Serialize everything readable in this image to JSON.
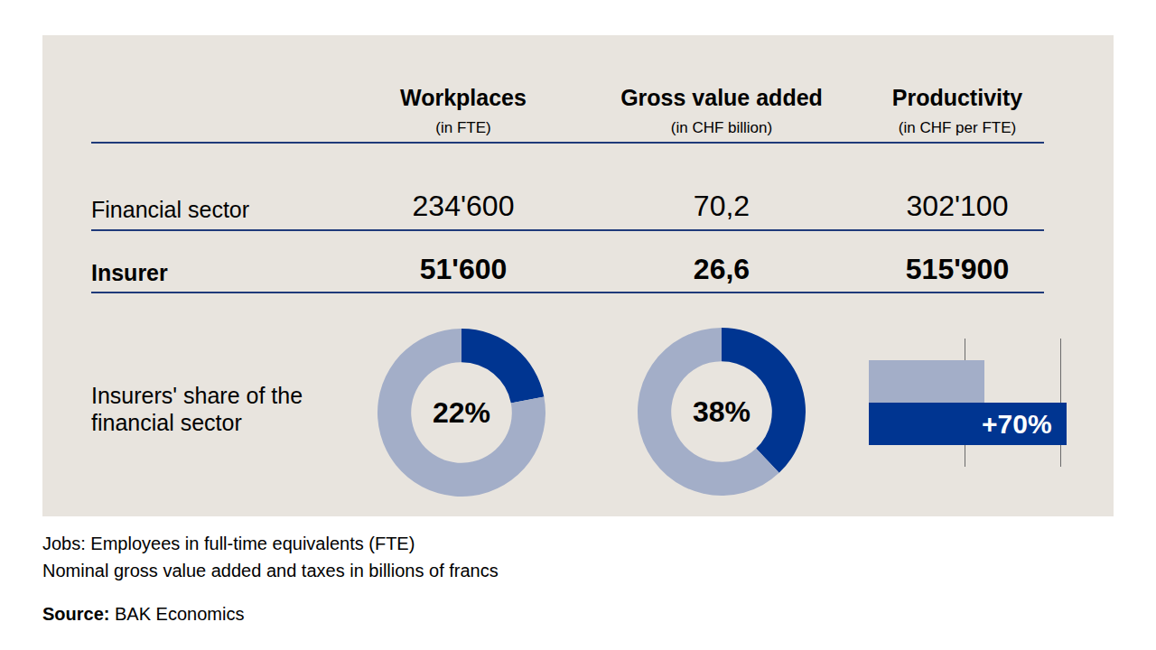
{
  "table": {
    "header": [
      {
        "title": "Workplaces",
        "unit": "(in FTE)"
      },
      {
        "title": "Gross value added",
        "unit": "(in CHF billion)"
      },
      {
        "title": "Productivity",
        "unit": "(in CHF per FTE)"
      }
    ],
    "rows": [
      {
        "label": "Financial sector",
        "cells": [
          "234'600",
          "70,2",
          "302'100"
        ],
        "bold": false
      },
      {
        "label": "Insurer",
        "cells": [
          "51'600",
          "26,6",
          "515'900"
        ],
        "bold": true
      }
    ]
  },
  "share_row_label": "Insurers' share of the financial sector",
  "chart_data": [
    {
      "type": "pie",
      "values": [
        22,
        78
      ],
      "colors": [
        "#003591",
        "#a3aec8"
      ],
      "center_label": "22%"
    },
    {
      "type": "pie",
      "values": [
        38,
        62
      ],
      "colors": [
        "#003591",
        "#a3aec8"
      ],
      "center_label": "38%"
    },
    {
      "type": "bar",
      "orientation": "horizontal",
      "values": [
        302100,
        515900
      ],
      "colors": [
        "#a3aec8",
        "#003591"
      ],
      "xlim": [
        0,
        520000
      ],
      "xticks": [
        0,
        250000,
        500000
      ],
      "grid": true,
      "tick_labels": false,
      "annotation": "+70%"
    }
  ],
  "notes": [
    "Jobs: Employees in full-time equivalents (FTE)",
    "Nominal gross value added and taxes in billions of francs"
  ],
  "source": {
    "label": "Source:",
    "text": "BAK Economics"
  }
}
